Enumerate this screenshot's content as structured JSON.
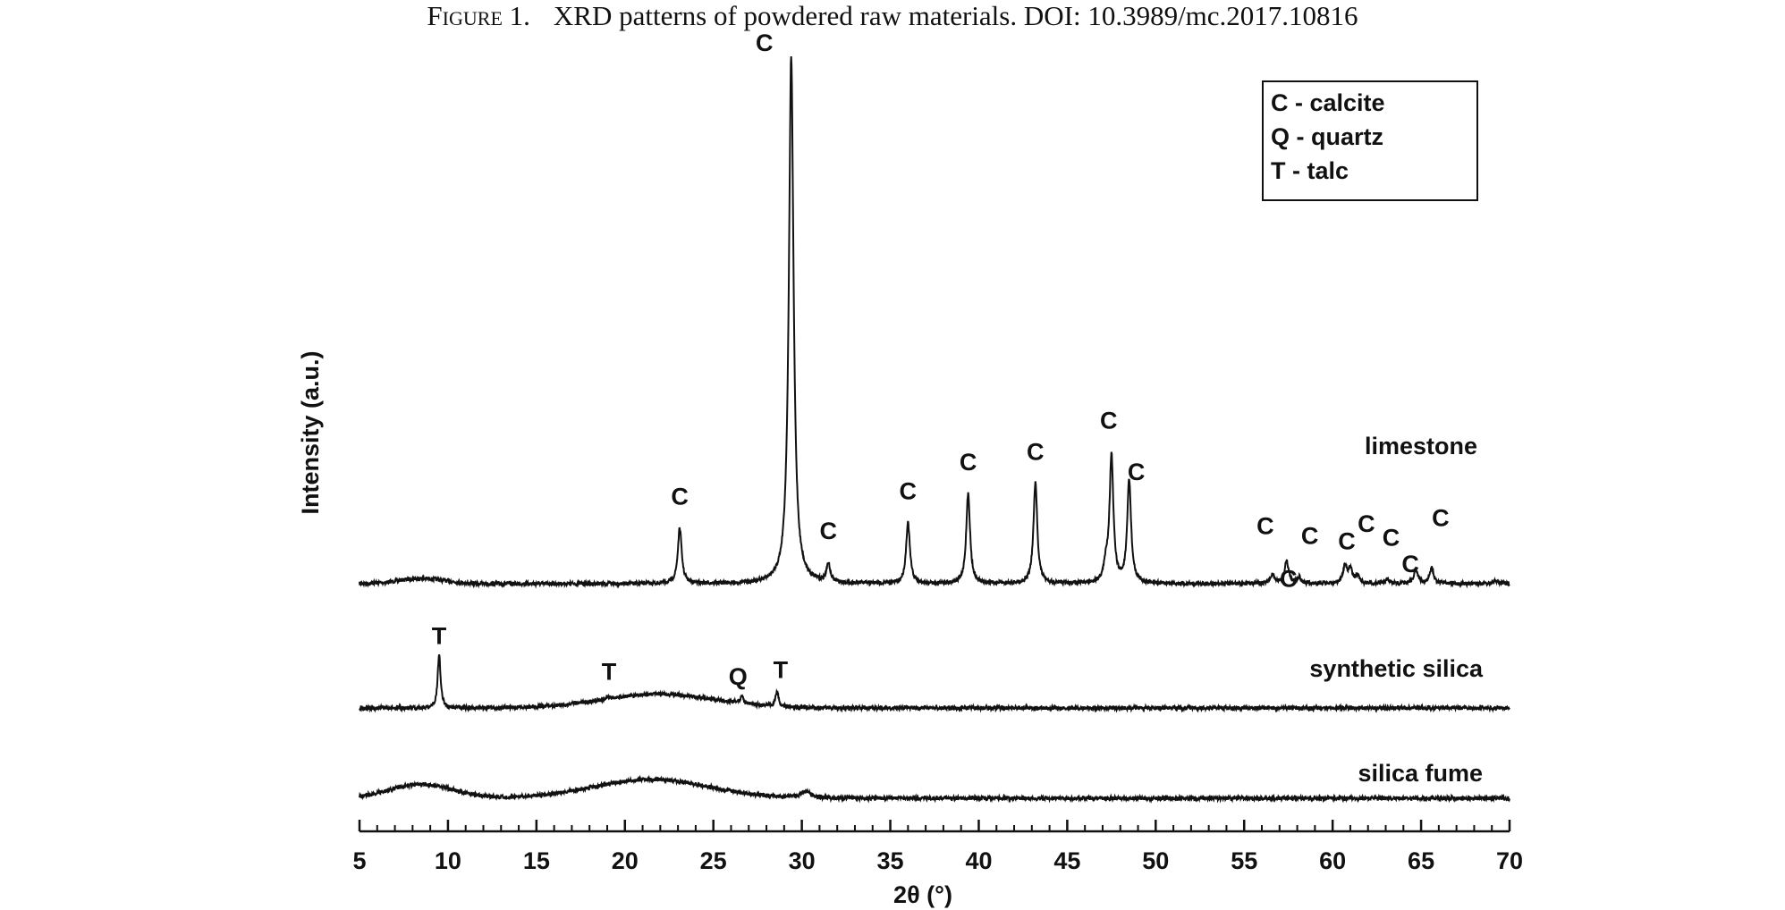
{
  "caption": {
    "label": "Figure 1.",
    "text": "XRD patterns of powdered raw materials. DOI: 10.3989/mc.2017.10816"
  },
  "chart_data": {
    "type": "line",
    "xlabel": "2θ (°)",
    "ylabel": "Intensity (a.u.)",
    "xlim": [
      5,
      70
    ],
    "xticks": [
      5,
      10,
      15,
      20,
      25,
      30,
      35,
      40,
      45,
      50,
      55,
      60,
      65,
      70
    ],
    "grid": false,
    "line_color": "#111111",
    "legend": {
      "placement": "top-right",
      "entries": [
        "C - calcite",
        "Q - quartz",
        "T - talc"
      ]
    },
    "series": [
      {
        "name": "limestone",
        "baseline_rel": 0.0,
        "peaks": [
          {
            "x": 23.1,
            "rel": 0.105,
            "width": 0.13
          },
          {
            "x": 29.4,
            "rel": 1.0,
            "width": 0.16
          },
          {
            "x": 31.5,
            "rel": 0.035,
            "width": 0.12
          },
          {
            "x": 36.0,
            "rel": 0.115,
            "width": 0.13
          },
          {
            "x": 39.4,
            "rel": 0.17,
            "width": 0.13
          },
          {
            "x": 43.2,
            "rel": 0.19,
            "width": 0.13
          },
          {
            "x": 47.2,
            "rel": 0.03,
            "width": 0.15
          },
          {
            "x": 47.5,
            "rel": 0.24,
            "width": 0.13
          },
          {
            "x": 48.5,
            "rel": 0.195,
            "width": 0.13
          },
          {
            "x": 56.6,
            "rel": 0.018,
            "width": 0.13
          },
          {
            "x": 57.4,
            "rel": 0.042,
            "width": 0.14
          },
          {
            "x": 58.1,
            "rel": 0.012,
            "width": 0.12
          },
          {
            "x": 60.7,
            "rel": 0.033,
            "width": 0.14
          },
          {
            "x": 61.0,
            "rel": 0.026,
            "width": 0.13
          },
          {
            "x": 61.4,
            "rel": 0.016,
            "width": 0.12
          },
          {
            "x": 63.1,
            "rel": 0.01,
            "width": 0.12
          },
          {
            "x": 64.7,
            "rel": 0.028,
            "width": 0.13
          },
          {
            "x": 65.6,
            "rel": 0.031,
            "width": 0.13
          },
          {
            "x": 69.2,
            "rel": 0.006,
            "width": 0.13
          }
        ],
        "humps": [
          {
            "x": 8.5,
            "rel": 0.01,
            "width": 1.3
          }
        ],
        "peak_labels": [
          {
            "text": "C",
            "x": 23.1
          },
          {
            "text": "C",
            "x": 29.4
          },
          {
            "text": "C",
            "x": 31.5
          },
          {
            "text": "C",
            "x": 36.0
          },
          {
            "text": "C",
            "x": 39.4
          },
          {
            "text": "C",
            "x": 43.2
          },
          {
            "text": "C",
            "x": 47.5
          },
          {
            "text": "C",
            "x": 48.5
          },
          {
            "text": "C",
            "x": 56.6
          },
          {
            "text": "C",
            "x": 57.4
          },
          {
            "text": "C",
            "x": 58.1
          },
          {
            "text": "C",
            "x": 60.7
          },
          {
            "text": "C",
            "x": 61.4
          },
          {
            "text": "C",
            "x": 63.1
          },
          {
            "text": "C",
            "x": 64.7
          },
          {
            "text": "C",
            "x": 65.6
          }
        ]
      },
      {
        "name": "synthetic silica",
        "baseline_rel": 0.0,
        "peaks": [
          {
            "x": 9.5,
            "rel": 0.085,
            "width": 0.1
          },
          {
            "x": 19.1,
            "rel": 0.005,
            "width": 0.14
          },
          {
            "x": 26.6,
            "rel": 0.012,
            "width": 0.1
          },
          {
            "x": 28.6,
            "rel": 0.025,
            "width": 0.1
          }
        ],
        "humps": [
          {
            "x": 22.0,
            "rel": 0.022,
            "width": 3.2
          }
        ],
        "peak_labels": [
          {
            "text": "T",
            "x": 9.5
          },
          {
            "text": "T",
            "x": 19.1
          },
          {
            "text": "Q",
            "x": 26.6
          },
          {
            "text": "T",
            "x": 28.6
          }
        ]
      },
      {
        "name": "silica fume",
        "baseline_rel": 0.0,
        "peaks": [
          {
            "x": 30.2,
            "rel": 0.01,
            "width": 0.35
          }
        ],
        "humps": [
          {
            "x": 8.5,
            "rel": 0.022,
            "width": 1.8
          },
          {
            "x": 21.5,
            "rel": 0.03,
            "width": 3.3
          }
        ],
        "peak_labels": []
      }
    ]
  }
}
